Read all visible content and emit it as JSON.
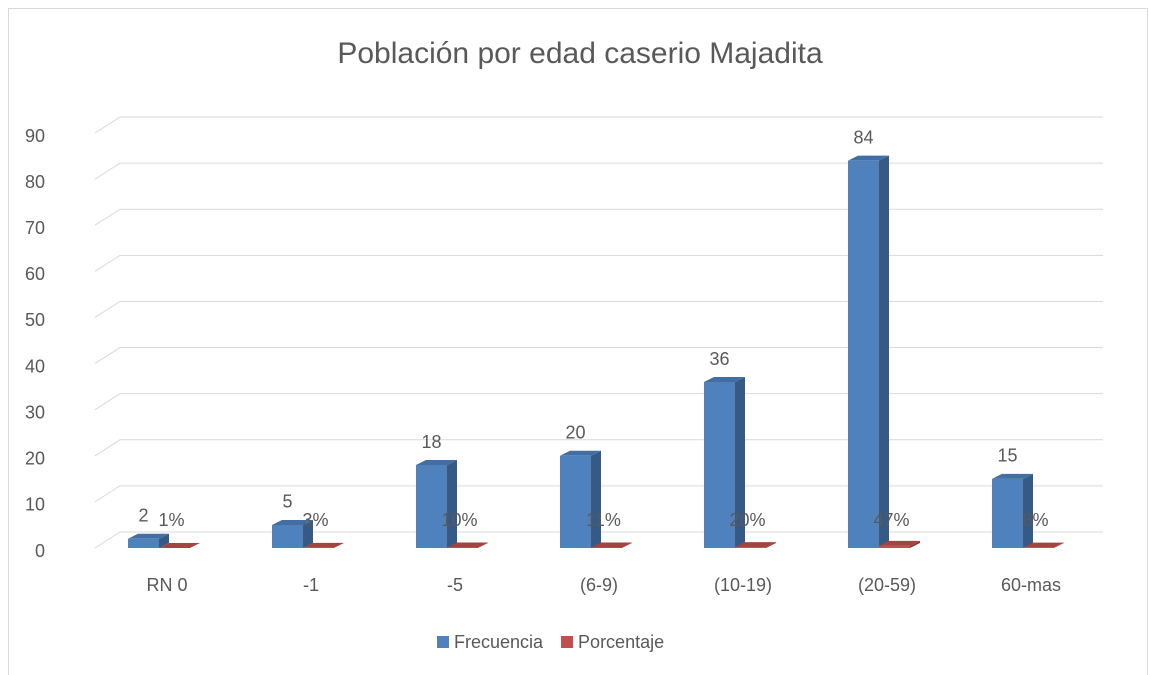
{
  "chart_data": {
    "type": "bar3d",
    "title": "Población por edad caserio Majadita",
    "categories": [
      "RN 0",
      "-1",
      "-5",
      "(6-9)",
      "(10-19)",
      "(20-59)",
      "60-mas"
    ],
    "series": [
      {
        "name": "Frecuencia",
        "color": "#4f81bd",
        "values": [
          2,
          5,
          18,
          20,
          36,
          84,
          15
        ]
      },
      {
        "name": "Porcentaje",
        "color": "#c0504d",
        "values": [
          0.01,
          0.03,
          0.1,
          0.11,
          0.2,
          0.47,
          0.08
        ],
        "value_labels": [
          "1%",
          "3%",
          "10%",
          "11%",
          "20%",
          "47%",
          "8%"
        ]
      }
    ],
    "ylim": [
      0,
      90
    ],
    "yticks": [
      0,
      10,
      20,
      30,
      40,
      50,
      60,
      70,
      80,
      90
    ],
    "grid": true,
    "legend": "bottom"
  }
}
